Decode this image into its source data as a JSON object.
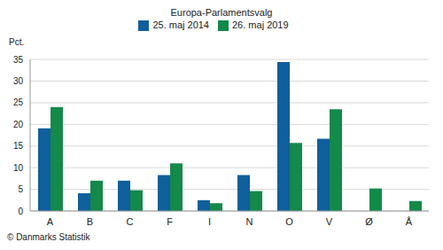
{
  "chart_data": {
    "type": "bar",
    "title": "Europa-Parlamentsvalg",
    "y_label": "Pct.",
    "annotations": [
      "© Danmarks Statistik"
    ],
    "categories": [
      "A",
      "B",
      "C",
      "F",
      "I",
      "N",
      "O",
      "V",
      "Ø",
      "Å"
    ],
    "series": [
      {
        "name": "25. maj 2014",
        "color": "#0f5f9c",
        "values": [
          19.1,
          4.1,
          7.0,
          8.3,
          2.5,
          8.3,
          34.4,
          16.7,
          null,
          null
        ]
      },
      {
        "name": "26. maj 2019",
        "color": "#13894a",
        "values": [
          24.0,
          7.0,
          4.8,
          11.0,
          1.8,
          4.6,
          15.7,
          23.5,
          5.2,
          2.3
        ]
      }
    ],
    "ylim": [
      0,
      35
    ],
    "yticks": [
      0,
      5,
      10,
      15,
      20,
      25,
      30,
      35
    ],
    "grid": true,
    "legend": "top"
  }
}
